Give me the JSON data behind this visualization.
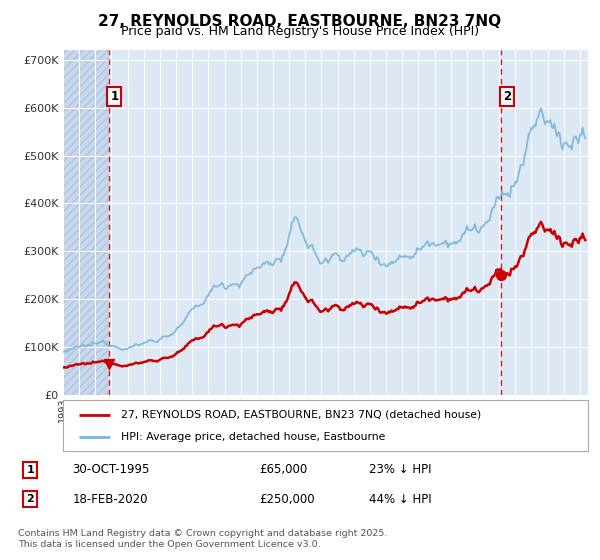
{
  "title": "27, REYNOLDS ROAD, EASTBOURNE, BN23 7NQ",
  "subtitle": "Price paid vs. HM Land Registry's House Price Index (HPI)",
  "hpi_color": "#7ab4d8",
  "property_color": "#cc0000",
  "vline_color": "#cc0000",
  "bg_color": "#dce9f5",
  "hatch_bg_color": "#c8d8ec",
  "ylim": [
    0,
    720000
  ],
  "yticks": [
    0,
    100000,
    200000,
    300000,
    400000,
    500000,
    600000,
    700000
  ],
  "sale1_date_num": 1995.83,
  "sale1_price": 65000,
  "sale2_date_num": 2020.12,
  "sale2_price": 250000,
  "legend_label1": "27, REYNOLDS ROAD, EASTBOURNE, BN23 7NQ (detached house)",
  "legend_label2": "HPI: Average price, detached house, Eastbourne",
  "annotation1_date": "30-OCT-1995",
  "annotation1_price": "£65,000",
  "annotation1_hpi": "23% ↓ HPI",
  "annotation2_date": "18-FEB-2020",
  "annotation2_price": "£250,000",
  "annotation2_hpi": "44% ↓ HPI",
  "footer": "Contains HM Land Registry data © Crown copyright and database right 2025.\nThis data is licensed under the Open Government Licence v3.0.",
  "xstart": 1993.0,
  "xend": 2025.5
}
